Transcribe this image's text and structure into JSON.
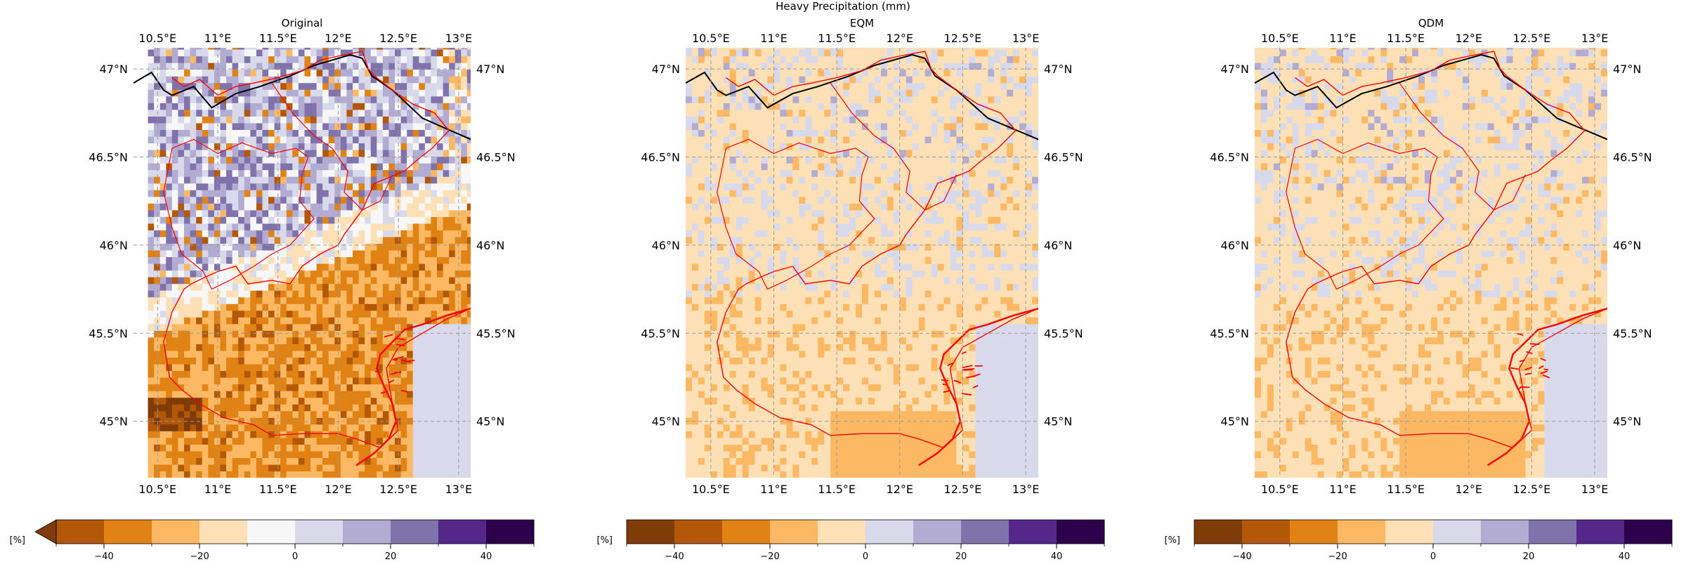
{
  "figure": {
    "suptitle": "Heavy Precipitation (mm)"
  },
  "chart_data": [
    {
      "type": "heatmap",
      "title": "Original",
      "xlim": [
        10.3,
        13.1
      ],
      "ylim": [
        44.68,
        47.12
      ],
      "x_ticks": [
        {
          "value": 10.5,
          "label": "10.5°E"
        },
        {
          "value": 11.0,
          "label": "11°E"
        },
        {
          "value": 11.5,
          "label": "11.5°E"
        },
        {
          "value": 12.0,
          "label": "12°E"
        },
        {
          "value": 12.5,
          "label": "12.5°E"
        },
        {
          "value": 13.0,
          "label": "13°E"
        }
      ],
      "y_ticks": [
        {
          "value": 47.0,
          "label": "47°N"
        },
        {
          "value": 46.5,
          "label": "46.5°N"
        },
        {
          "value": 46.0,
          "label": "46°N"
        },
        {
          "value": 45.5,
          "label": "45.5°N"
        },
        {
          "value": 45.0,
          "label": "45°N"
        }
      ],
      "grid": true,
      "pattern": "north_positive_south_negative",
      "colorbar": {
        "unit_label": "[%]",
        "extend": "min",
        "range": [
          -50,
          50
        ],
        "boundaries": [
          -50,
          -40,
          -30,
          -20,
          -10,
          0,
          10,
          20,
          30,
          40,
          50
        ],
        "ticks": [
          {
            "value": -40,
            "label": "−40"
          },
          {
            "value": -20,
            "label": "−20"
          },
          {
            "value": 0,
            "label": "0"
          },
          {
            "value": 20,
            "label": "20"
          },
          {
            "value": 40,
            "label": "40"
          }
        ],
        "colors": [
          "#b35806",
          "#e08214",
          "#fdb863",
          "#fee0b6",
          "#f7f7f7",
          "#d8daeb",
          "#b2abd2",
          "#8073ac",
          "#542788",
          "#2d004b"
        ],
        "under_color": "#7f3b08"
      }
    },
    {
      "type": "heatmap",
      "title": "EQM",
      "xlim": [
        10.3,
        13.1
      ],
      "ylim": [
        44.68,
        47.12
      ],
      "x_ticks": [
        {
          "value": 10.5,
          "label": "10.5°E"
        },
        {
          "value": 11.0,
          "label": "11°E"
        },
        {
          "value": 11.5,
          "label": "11.5°E"
        },
        {
          "value": 12.0,
          "label": "12°E"
        },
        {
          "value": 12.5,
          "label": "12.5°E"
        },
        {
          "value": 13.0,
          "label": "13°E"
        }
      ],
      "y_ticks": [
        {
          "value": 47.0,
          "label": "47°N"
        },
        {
          "value": 46.5,
          "label": "46.5°N"
        },
        {
          "value": 46.0,
          "label": "46°N"
        },
        {
          "value": 45.5,
          "label": "45.5°N"
        },
        {
          "value": 45.0,
          "label": "45°N"
        }
      ],
      "grid": true,
      "pattern": "near_zero_with_south_negative_patch",
      "colorbar": {
        "unit_label": "[%]",
        "extend": "neither",
        "range": [
          -50,
          50
        ],
        "boundaries": [
          -50,
          -40,
          -30,
          -20,
          -10,
          0,
          10,
          20,
          30,
          40,
          50
        ],
        "ticks": [
          {
            "value": -40,
            "label": "−40"
          },
          {
            "value": -20,
            "label": "−20"
          },
          {
            "value": 0,
            "label": "0"
          },
          {
            "value": 20,
            "label": "20"
          },
          {
            "value": 40,
            "label": "40"
          }
        ],
        "colors": [
          "#7f3b08",
          "#b35806",
          "#e08214",
          "#fdb863",
          "#fee0b6",
          "#d8daeb",
          "#b2abd2",
          "#8073ac",
          "#542788",
          "#2d004b"
        ]
      }
    },
    {
      "type": "heatmap",
      "title": "QDM",
      "xlim": [
        10.3,
        13.1
      ],
      "ylim": [
        44.68,
        47.12
      ],
      "x_ticks": [
        {
          "value": 10.5,
          "label": "10.5°E"
        },
        {
          "value": 11.0,
          "label": "11°E"
        },
        {
          "value": 11.5,
          "label": "11.5°E"
        },
        {
          "value": 12.0,
          "label": "12°E"
        },
        {
          "value": 12.5,
          "label": "12.5°E"
        },
        {
          "value": 13.0,
          "label": "13°E"
        }
      ],
      "y_ticks": [
        {
          "value": 47.0,
          "label": "47°N"
        },
        {
          "value": 46.5,
          "label": "46.5°N"
        },
        {
          "value": 46.0,
          "label": "46°N"
        },
        {
          "value": 45.5,
          "label": "45.5°N"
        },
        {
          "value": 45.0,
          "label": "45°N"
        }
      ],
      "grid": true,
      "pattern": "near_zero_with_south_negative_patch",
      "colorbar": {
        "unit_label": "[%]",
        "extend": "neither",
        "range": [
          -50,
          50
        ],
        "boundaries": [
          -50,
          -40,
          -30,
          -20,
          -10,
          0,
          10,
          20,
          30,
          40,
          50
        ],
        "ticks": [
          {
            "value": -40,
            "label": "−40"
          },
          {
            "value": -20,
            "label": "−20"
          },
          {
            "value": 0,
            "label": "0"
          },
          {
            "value": 20,
            "label": "20"
          },
          {
            "value": 40,
            "label": "40"
          }
        ],
        "colors": [
          "#7f3b08",
          "#b35806",
          "#e08214",
          "#fdb863",
          "#fee0b6",
          "#d8daeb",
          "#b2abd2",
          "#8073ac",
          "#542788",
          "#2d004b"
        ]
      }
    }
  ],
  "map_outlines": {
    "region_border_color": "#ff0000",
    "national_border_color": "#000000",
    "region_border": [
      [
        10.62,
        46.95
      ],
      [
        10.72,
        46.9
      ],
      [
        10.85,
        46.94
      ],
      [
        11.0,
        46.85
      ],
      [
        11.15,
        46.9
      ],
      [
        11.3,
        46.92
      ],
      [
        11.5,
        46.95
      ],
      [
        11.7,
        46.99
      ],
      [
        11.85,
        47.05
      ],
      [
        12.05,
        47.08
      ],
      [
        12.2,
        47.1
      ],
      [
        12.25,
        47.0
      ],
      [
        12.3,
        46.96
      ],
      [
        12.45,
        46.88
      ],
      [
        12.62,
        46.8
      ],
      [
        12.8,
        46.75
      ],
      [
        12.92,
        46.65
      ],
      [
        12.78,
        46.55
      ],
      [
        12.65,
        46.48
      ],
      [
        12.55,
        46.42
      ],
      [
        12.48,
        46.4
      ],
      [
        12.3,
        46.35
      ],
      [
        12.2,
        46.2
      ],
      [
        12.05,
        46.06
      ],
      [
        12.0,
        46.0
      ],
      [
        11.85,
        45.95
      ],
      [
        11.7,
        45.88
      ],
      [
        11.6,
        45.78
      ],
      [
        11.45,
        45.8
      ],
      [
        11.25,
        45.78
      ],
      [
        11.15,
        45.88
      ],
      [
        11.0,
        45.85
      ],
      [
        10.9,
        45.82
      ],
      [
        10.78,
        45.78
      ],
      [
        10.72,
        45.75
      ],
      [
        10.62,
        45.62
      ],
      [
        10.55,
        45.45
      ],
      [
        10.6,
        45.25
      ],
      [
        10.7,
        45.18
      ],
      [
        10.85,
        45.1
      ],
      [
        11.05,
        45.02
      ],
      [
        11.3,
        44.98
      ],
      [
        11.45,
        44.92
      ],
      [
        11.7,
        44.93
      ],
      [
        12.0,
        44.93
      ],
      [
        12.15,
        44.9
      ],
      [
        12.35,
        44.85
      ],
      [
        12.5,
        44.95
      ],
      [
        12.45,
        45.1
      ],
      [
        12.4,
        45.3
      ],
      [
        12.5,
        45.42
      ],
      [
        12.7,
        45.5
      ],
      [
        12.9,
        45.58
      ],
      [
        13.1,
        45.64
      ]
    ],
    "internal_border": [
      [
        11.45,
        46.92
      ],
      [
        11.62,
        46.75
      ],
      [
        11.8,
        46.62
      ],
      [
        11.95,
        46.55
      ],
      [
        12.08,
        46.42
      ],
      [
        12.05,
        46.3
      ],
      [
        12.2,
        46.2
      ],
      [
        12.35,
        46.25
      ],
      [
        12.45,
        46.4
      ]
    ],
    "trentino_border": [
      [
        10.62,
        46.55
      ],
      [
        10.8,
        46.6
      ],
      [
        11.0,
        46.52
      ],
      [
        11.2,
        46.58
      ],
      [
        11.45,
        46.52
      ],
      [
        11.65,
        46.55
      ],
      [
        11.75,
        46.5
      ],
      [
        11.7,
        46.4
      ],
      [
        11.68,
        46.25
      ],
      [
        11.8,
        46.15
      ],
      [
        11.6,
        46.0
      ],
      [
        11.45,
        45.95
      ],
      [
        11.3,
        45.88
      ],
      [
        11.1,
        45.8
      ],
      [
        10.95,
        45.75
      ],
      [
        10.88,
        45.85
      ],
      [
        10.7,
        45.95
      ],
      [
        10.62,
        46.1
      ],
      [
        10.55,
        46.3
      ],
      [
        10.62,
        46.55
      ]
    ],
    "coast": [
      [
        12.15,
        44.75
      ],
      [
        12.3,
        44.82
      ],
      [
        12.42,
        44.9
      ],
      [
        12.48,
        45.0
      ],
      [
        12.45,
        45.1
      ],
      [
        12.38,
        45.2
      ],
      [
        12.32,
        45.3
      ],
      [
        12.35,
        45.38
      ],
      [
        12.45,
        45.45
      ],
      [
        12.55,
        45.52
      ],
      [
        12.7,
        45.55
      ],
      [
        12.9,
        45.6
      ],
      [
        13.1,
        45.64
      ]
    ],
    "national_border": [
      [
        10.3,
        46.92
      ],
      [
        10.45,
        46.98
      ],
      [
        10.55,
        46.88
      ],
      [
        10.62,
        46.85
      ],
      [
        10.8,
        46.9
      ],
      [
        10.95,
        46.78
      ],
      [
        11.15,
        46.86
      ],
      [
        11.35,
        46.9
      ],
      [
        11.6,
        46.96
      ],
      [
        11.8,
        47.02
      ],
      [
        12.1,
        47.08
      ],
      [
        12.2,
        47.06
      ],
      [
        12.28,
        46.96
      ],
      [
        12.45,
        46.88
      ],
      [
        12.7,
        46.72
      ],
      [
        13.1,
        46.6
      ]
    ]
  }
}
